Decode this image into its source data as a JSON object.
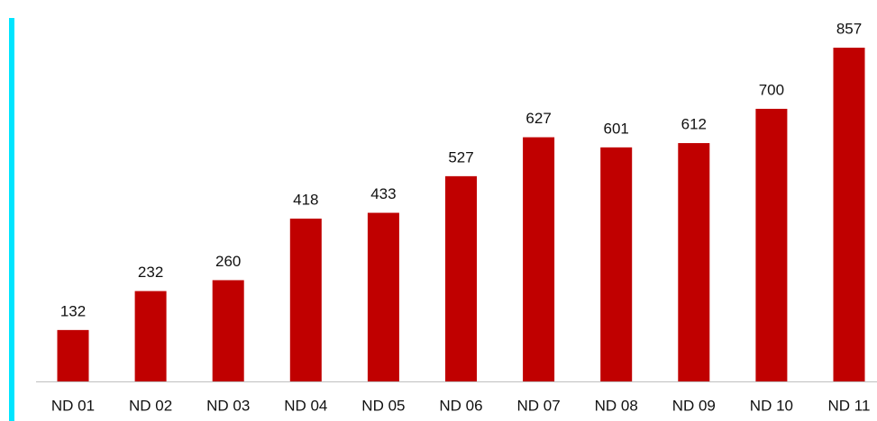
{
  "chart_data": {
    "type": "bar",
    "categories": [
      "ND 01",
      "ND 02",
      "ND 03",
      "ND 04",
      "ND 05",
      "ND 06",
      "ND 07",
      "ND 08",
      "ND 09",
      "ND 10",
      "ND 11"
    ],
    "values": [
      132,
      232,
      260,
      418,
      433,
      527,
      627,
      601,
      612,
      700,
      857
    ],
    "color": "#c00000"
  }
}
